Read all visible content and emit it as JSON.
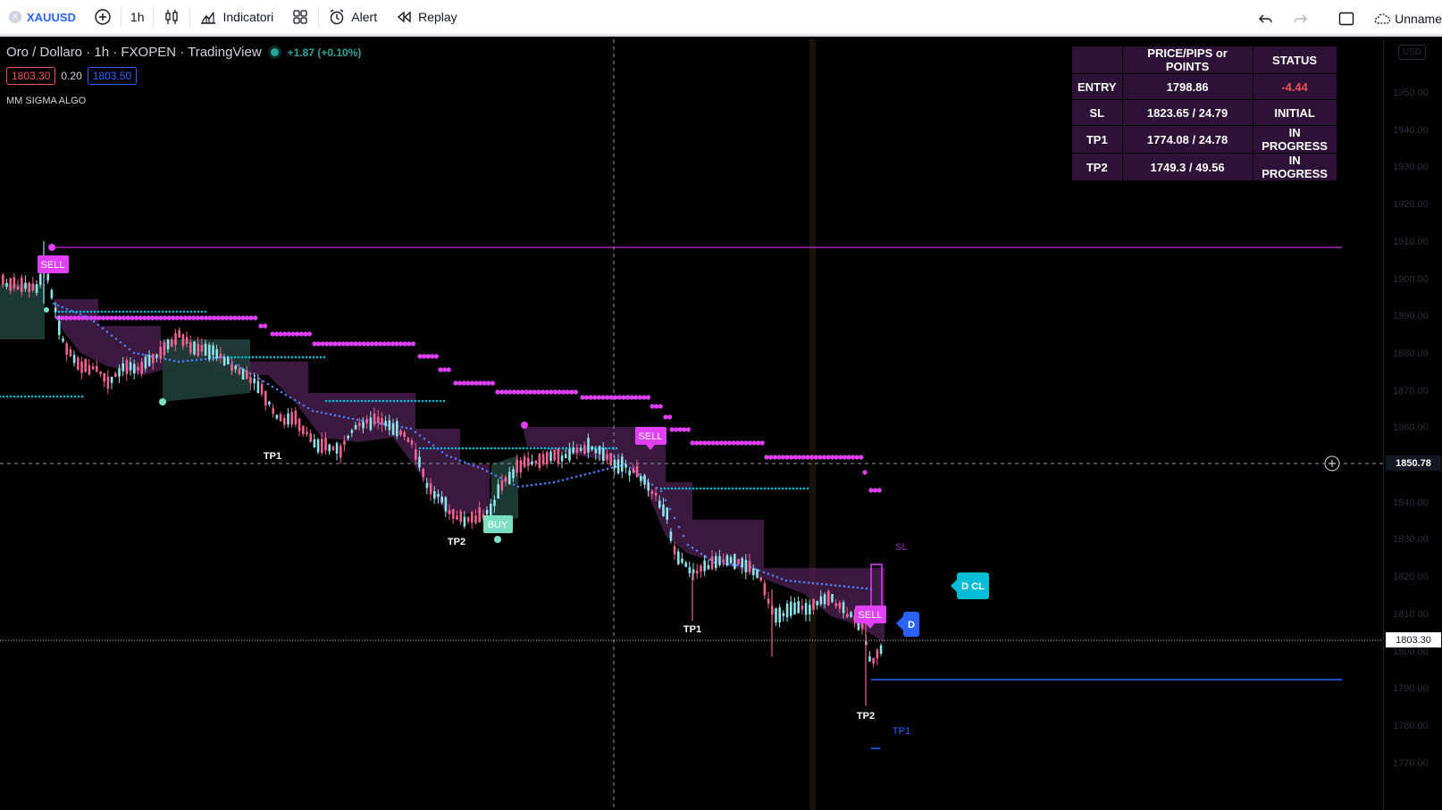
{
  "toolbar": {
    "symbol": "XAUUSD",
    "symbol_icon": "circle-x-icon",
    "interval": "1h",
    "indicators_label": "Indicatori",
    "alert_label": "Alert",
    "replay_label": "Replay",
    "layout_name": "Unname"
  },
  "legend": {
    "title": "Oro / Dollaro · 1h · FXOPEN · TradingView",
    "change": "+1.87 (+0.10%)",
    "sell_price": "1803.30",
    "spread": "0.20",
    "buy_price": "1803.50",
    "indicator_name": "MM SIGMA ALGO"
  },
  "stats_table": {
    "headers": [
      "",
      "PRICE/PIPS or POINTS",
      "STATUS"
    ],
    "rows": [
      {
        "label": "ENTRY",
        "value": "1798.86",
        "status": "-4.44",
        "status_color": "#ef5350"
      },
      {
        "label": "SL",
        "value": "1823.65 / 24.79",
        "status": "INITIAL",
        "status_color": "#ffffff"
      },
      {
        "label": "TP1",
        "value": "1774.08 / 24.78",
        "status": "IN PROGRESS",
        "status_color": "#ffffff"
      },
      {
        "label": "TP2",
        "value": "1749.3 / 49.56",
        "status": "IN PROGRESS",
        "status_color": "#ffffff"
      }
    ]
  },
  "price_axis": {
    "currency": "USD",
    "ticks": [
      "1950.00",
      "1940.00",
      "1930.00",
      "1920.00",
      "1910.00",
      "1900.00",
      "1890.00",
      "1880.00",
      "1870.00",
      "1860.00",
      "1850.00",
      "1840.00",
      "1830.00",
      "1820.00",
      "1810.00",
      "1800.00",
      "1790.00",
      "1780.00",
      "1770.00"
    ],
    "crosshair_price": "1850.78",
    "last_price": "1803.30"
  },
  "chart_labels": {
    "sell_1": "SELL",
    "sell_2": "SELL",
    "sell_3": "SELL",
    "buy_1": "BUY",
    "tp1_a": "TP1",
    "tp2_a": "TP2",
    "tp1_b": "TP1",
    "tp2_b": "TP2",
    "tp1_c": "TP1",
    "sl": "SL",
    "d_cl": "D CL",
    "d": "D"
  },
  "colors": {
    "bull": "#8ee3e8",
    "bear": "#f06292",
    "sell_cloud": "#4a1f4f",
    "buy_cloud": "#1f3a36",
    "magenta": "#e040fb",
    "cyan": "#00bcd4",
    "blue_line": "#2962ff"
  }
}
